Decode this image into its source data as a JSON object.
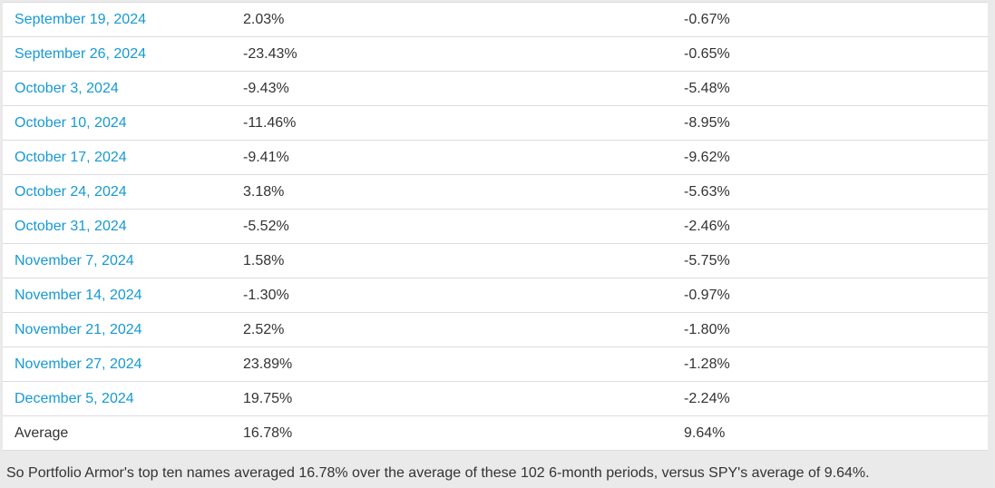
{
  "colors": {
    "link": "#1699d6",
    "text": "#333333",
    "page_background": "#eaeaea",
    "table_background": "#ffffff",
    "row_border": "#dcdce1",
    "table_bottom_border": "#cfcfd4"
  },
  "table": {
    "rows": [
      {
        "date": "September 19, 2024",
        "portfolio_armor": "2.03%",
        "spy": "-0.67%"
      },
      {
        "date": "September 26, 2024",
        "portfolio_armor": "-23.43%",
        "spy": "-0.65%"
      },
      {
        "date": "October 3, 2024",
        "portfolio_armor": "-9.43%",
        "spy": "-5.48%"
      },
      {
        "date": "October 10, 2024",
        "portfolio_armor": "-11.46%",
        "spy": "-8.95%"
      },
      {
        "date": "October 17, 2024",
        "portfolio_armor": "-9.41%",
        "spy": "-9.62%"
      },
      {
        "date": "October 24, 2024",
        "portfolio_armor": "3.18%",
        "spy": "-5.63%"
      },
      {
        "date": "October 31, 2024",
        "portfolio_armor": "-5.52%",
        "spy": "-2.46%"
      },
      {
        "date": "November 7, 2024",
        "portfolio_armor": "1.58%",
        "spy": "-5.75%"
      },
      {
        "date": "November 14, 2024",
        "portfolio_armor": "-1.30%",
        "spy": "-0.97%"
      },
      {
        "date": "November 21, 2024",
        "portfolio_armor": "2.52%",
        "spy": "-1.80%"
      },
      {
        "date": "November 27, 2024",
        "portfolio_armor": "23.89%",
        "spy": "-1.28%"
      },
      {
        "date": "December 5, 2024",
        "portfolio_armor": "19.75%",
        "spy": "-2.24%"
      }
    ],
    "average_row": {
      "label": "Average",
      "portfolio_armor": "16.78%",
      "spy": "9.64%"
    }
  },
  "caption": "So Portfolio Armor's top ten names averaged 16.78% over the average of these 102 6-month periods, versus SPY's average of 9.64%."
}
